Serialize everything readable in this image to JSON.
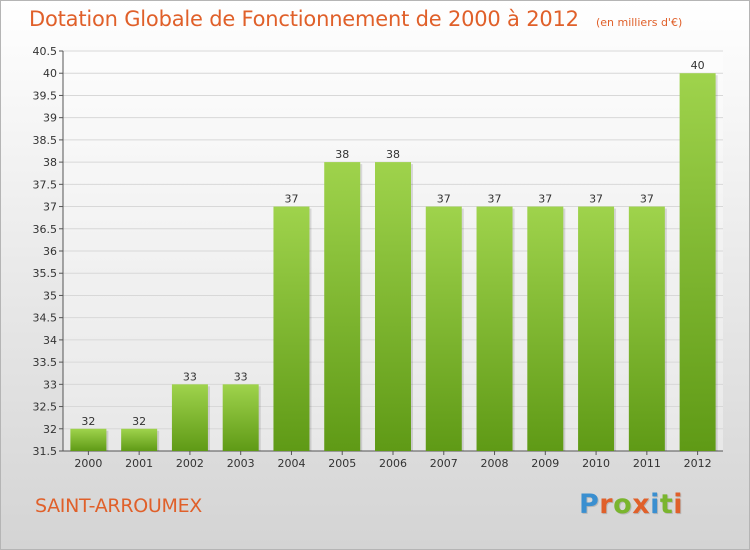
{
  "header": {
    "title": "Dotation Globale de Fonctionnement de 2000 à 2012",
    "unit": "(en milliers d'€)"
  },
  "footer": {
    "commune": "SAINT-ARROUMEX",
    "brand": "Proxiti",
    "brand_colors": [
      "#3a8fd0",
      "#e0602a",
      "#7ab52e",
      "#e0602a",
      "#3a8fd0",
      "#7ab52e",
      "#e0602a"
    ]
  },
  "colors": {
    "bar_top": "#9fd34c",
    "bar_bottom": "#5f9a16",
    "title": "#e0602a",
    "axis": "#555555",
    "grid": "#d8d8d8"
  },
  "chart_data": {
    "type": "bar",
    "title": "Dotation Globale de Fonctionnement de 2000 à 2012",
    "xlabel": "",
    "ylabel": "",
    "categories": [
      "2000",
      "2001",
      "2002",
      "2003",
      "2004",
      "2005",
      "2006",
      "2007",
      "2008",
      "2009",
      "2010",
      "2011",
      "2012"
    ],
    "values": [
      32,
      32,
      33,
      33,
      37,
      38,
      38,
      37,
      37,
      37,
      37,
      37,
      40
    ],
    "data_labels": [
      "32",
      "32",
      "33",
      "33",
      "37",
      "38",
      "38",
      "37",
      "37",
      "37",
      "37",
      "37",
      "40"
    ],
    "ylim": [
      31.5,
      40.5
    ],
    "yticks": [
      "31.5",
      "32",
      "32.5",
      "33",
      "33.5",
      "34",
      "34.5",
      "35",
      "35.5",
      "36",
      "36.5",
      "37",
      "37.5",
      "38",
      "38.5",
      "39",
      "39.5",
      "40",
      "40.5"
    ],
    "grid": true,
    "legend": "none"
  }
}
